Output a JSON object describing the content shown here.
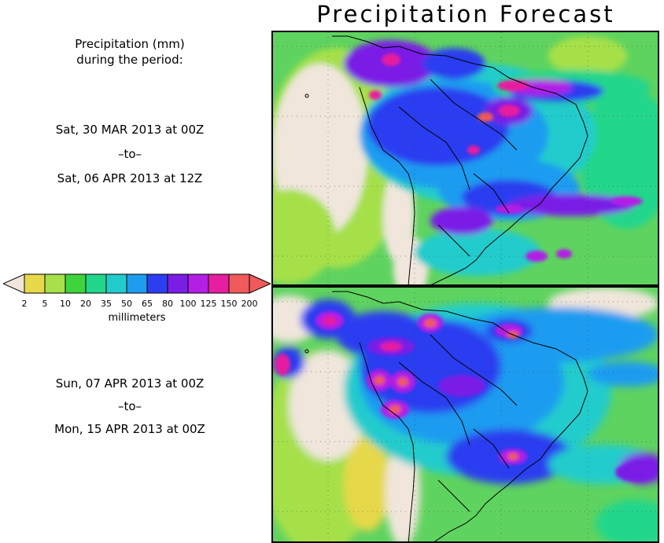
{
  "title": "Precipitation Forecast",
  "period_label": {
    "line1": "Precipitation (mm)",
    "line2": "during the period:"
  },
  "period1": {
    "start": "Sat, 30 MAR 2013 at 00Z",
    "sep": "–to–",
    "end": "Sat, 06 APR 2013 at 12Z"
  },
  "period2": {
    "start": "Sun, 07 APR 2013 at 00Z",
    "sep": "–to–",
    "end": "Mon, 15 APR 2013 at 00Z"
  },
  "legend": {
    "units": "millimeters",
    "bins": [
      {
        "label": "2",
        "color": "#e6d84a"
      },
      {
        "label": "5",
        "color": "#a6e04a"
      },
      {
        "label": "10",
        "color": "#3ed43e"
      },
      {
        "label": "20",
        "color": "#22d68c"
      },
      {
        "label": "35",
        "color": "#22cccc"
      },
      {
        "label": "50",
        "color": "#1e9cf0"
      },
      {
        "label": "65",
        "color": "#2c3ef0"
      },
      {
        "label": "80",
        "color": "#7a1ee6"
      },
      {
        "label": "100",
        "color": "#b41ee6"
      },
      {
        "label": "125",
        "color": "#e61ea0"
      },
      {
        "label": "150",
        "color": "#f05a5a"
      },
      {
        "label": "200",
        "color": ""
      }
    ],
    "under_color": "#f0e6dc",
    "over_color": "#f05a5a"
  }
}
